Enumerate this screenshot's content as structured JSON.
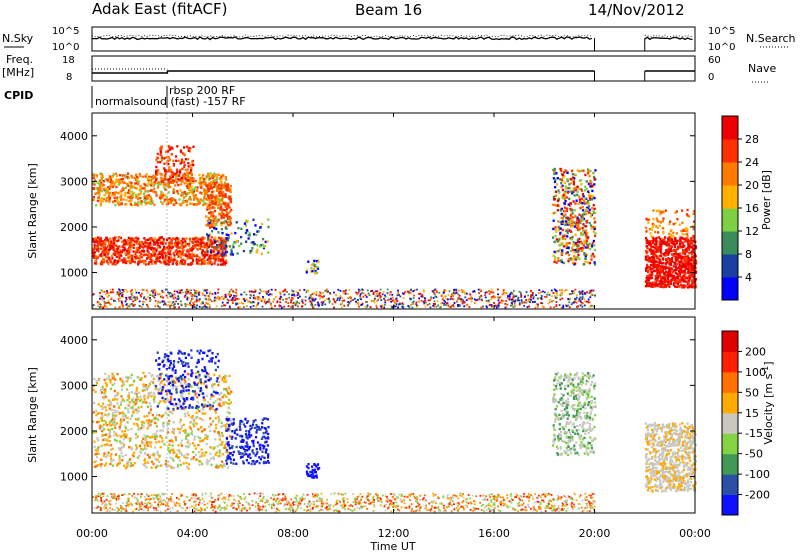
{
  "header": {
    "title": "Adak East (fitACF)",
    "beam": "Beam 16",
    "date": "14/Nov/2012"
  },
  "labels": {
    "nsky": "N.Sky",
    "nsearch": "N.Search",
    "freq": "Freq.",
    "freq_unit": "[MHz]",
    "nave": "Nave",
    "cpid": "CPID",
    "cpid_1": "normalsound (fast) -157 RF",
    "cpid_2": "rbsp 200 RF",
    "slant_range": "Slant Range [km]",
    "time_ut": "Time UT"
  },
  "colors": {
    "power": [
      "#0000ff",
      "#1a3fa0",
      "#3a8c5a",
      "#7fcf45",
      "#ffb000",
      "#ff7a00",
      "#ff3000",
      "#ee0000"
    ],
    "velocity": [
      "#1010ff",
      "#2b4fa6",
      "#409a55",
      "#85d345",
      "#c8c8c0",
      "#ffaa00",
      "#ff7000",
      "#ff2000",
      "#e00000"
    ]
  },
  "chart_data": [
    {
      "type": "line",
      "name": "noise-panel",
      "ylabel_left": "N.Sky",
      "ylabel_right": "N.Search",
      "left_ticks": [
        "10^5",
        "10^0"
      ],
      "right_ticks": [
        "10^5",
        "10^0"
      ],
      "x": [
        "00:00",
        "20:00",
        "22:00",
        "24:00"
      ],
      "coverage": [
        [
          0,
          20
        ],
        [
          22,
          24
        ]
      ]
    },
    {
      "type": "line",
      "name": "freq-nave-panel",
      "left_ticks": [
        "18",
        "8"
      ],
      "right_ticks": [
        "60",
        "0"
      ],
      "freq_segments": [
        {
          "start": 0,
          "end": 3,
          "value": 11
        },
        {
          "start": 3,
          "end": 20,
          "value": 10.8
        },
        {
          "start": 22,
          "end": 24,
          "value": 10.8
        }
      ]
    },
    {
      "type": "heatmap",
      "name": "power",
      "title": "",
      "xlabel": "Time UT",
      "ylabel": "Slant Range [km]",
      "colorbar_label": "Power [dB]",
      "colorbar_ticks": [
        "28",
        "24",
        "20",
        "16",
        "12",
        "8",
        "4"
      ],
      "yticks": [
        "1000",
        "2000",
        "3000",
        "4000"
      ],
      "ylim": [
        200,
        4500
      ]
    },
    {
      "type": "heatmap",
      "name": "velocity",
      "title": "",
      "xlabel": "Time UT",
      "ylabel": "Slant Range [km]",
      "colorbar_label": "Velocity [m s-1]",
      "colorbar_ticks": [
        "200",
        "100",
        "50",
        "15",
        "-15",
        "-50",
        "-100",
        "-200"
      ],
      "yticks": [
        "1000",
        "2000",
        "3000",
        "4000"
      ],
      "ylim": [
        200,
        4500
      ]
    }
  ],
  "xticks": [
    "00:00",
    "04:00",
    "08:00",
    "12:00",
    "16:00",
    "20:00",
    "00:00"
  ]
}
